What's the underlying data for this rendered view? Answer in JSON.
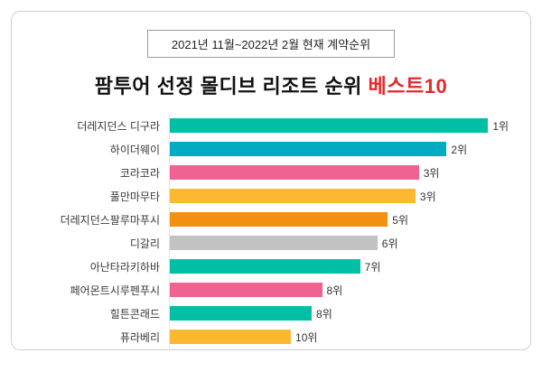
{
  "chart_data": {
    "type": "bar",
    "orientation": "horizontal",
    "subtitle": "2021년 11월~2022년 2월 현재 계약순위",
    "title_main": "팜투어 선정 몰디브 리조트 순위 ",
    "title_highlight": "베스트10",
    "highlight_color": "#e8262a",
    "categories": [
      "더레지던스 디구라",
      "하이더웨이",
      "코라코라",
      "풀만마무타",
      "더레지던스팔루마푸시",
      "디갈리",
      "아난타라키하바",
      "페어몬트시루펜푸시",
      "힐튼콘래드",
      "퓨라베리"
    ],
    "ranks": [
      "1위",
      "2위",
      "3위",
      "3위",
      "5위",
      "6위",
      "7위",
      "8위",
      "8위",
      "10위"
    ],
    "values_pct": [
      92,
      80,
      72,
      71,
      63,
      60,
      55,
      44,
      41,
      35
    ],
    "colors": [
      "#00BFA5",
      "#00ACC1",
      "#F0628F",
      "#FBB830",
      "#F29111",
      "#C2C2C2",
      "#00BFA5",
      "#F0628F",
      "#00BFA5",
      "#FBB830"
    ]
  }
}
